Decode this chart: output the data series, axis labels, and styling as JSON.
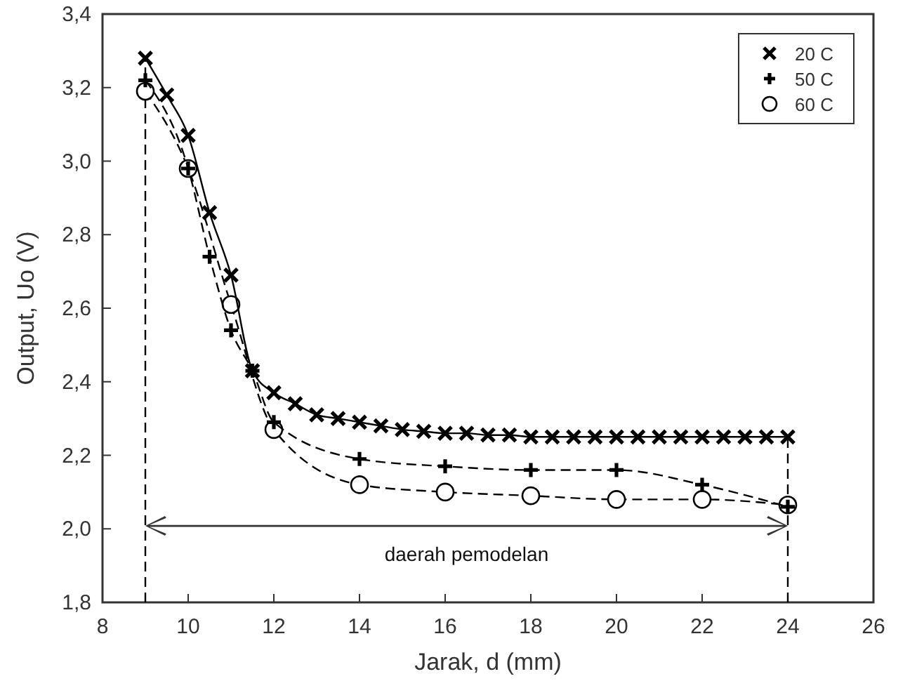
{
  "chart_data": {
    "type": "line",
    "xlabel": "Jarak, d (mm)",
    "ylabel": "Output, Uo (V)",
    "xlim": [
      8,
      26
    ],
    "xticks": [
      8,
      10,
      12,
      14,
      16,
      18,
      20,
      22,
      24,
      26
    ],
    "ylim": [
      1.8,
      3.4
    ],
    "yticks": [
      {
        "value": 1.8,
        "label": "1,8"
      },
      {
        "value": 2.0,
        "label": "2,0"
      },
      {
        "value": 2.2,
        "label": "2,2"
      },
      {
        "value": 2.4,
        "label": "2,4"
      },
      {
        "value": 2.6,
        "label": "2,6"
      },
      {
        "value": 2.8,
        "label": "2,8"
      },
      {
        "value": 3.0,
        "label": "3,0"
      },
      {
        "value": 3.2,
        "label": "3,2"
      },
      {
        "value": 3.4,
        "label": "3,4"
      }
    ],
    "legend": "top right",
    "series": [
      {
        "name": "20 C",
        "color": "#000000",
        "marker": "cross",
        "line_style": "solid",
        "x": [
          9,
          9.5,
          10,
          10.5,
          11,
          11.5,
          12,
          12.5,
          13,
          13.5,
          14,
          14.5,
          15,
          15.5,
          16,
          16.5,
          17,
          17.5,
          18,
          18.5,
          19,
          19.5,
          20,
          20.5,
          21,
          21.5,
          22,
          22.5,
          23,
          23.5,
          24
        ],
        "values": [
          3.28,
          3.18,
          3.07,
          2.86,
          2.69,
          2.43,
          2.37,
          2.34,
          2.31,
          2.3,
          2.29,
          2.28,
          2.27,
          2.265,
          2.26,
          2.26,
          2.255,
          2.255,
          2.25,
          2.25,
          2.25,
          2.25,
          2.25,
          2.25,
          2.25,
          2.25,
          2.25,
          2.25,
          2.25,
          2.25,
          2.25
        ]
      },
      {
        "name": "50 C",
        "color": "#000000",
        "marker": "plus",
        "line_style": "dashed",
        "x": [
          9,
          10,
          10.5,
          11,
          11.5,
          12,
          14,
          16,
          18,
          20,
          22,
          24
        ],
        "values": [
          3.22,
          2.98,
          2.74,
          2.54,
          2.43,
          2.29,
          2.19,
          2.17,
          2.16,
          2.16,
          2.12,
          2.06
        ]
      },
      {
        "name": "60 C",
        "color": "#000000",
        "marker": "circle",
        "line_style": "dashed",
        "x": [
          9,
          10,
          11,
          12,
          14,
          16,
          18,
          20,
          22,
          24
        ],
        "values": [
          3.19,
          2.98,
          2.61,
          2.27,
          2.12,
          2.1,
          2.09,
          2.08,
          2.08,
          2.065
        ]
      }
    ],
    "ref_lines": [
      {
        "axis": "x",
        "value": 9,
        "line_style": "dashed",
        "color": "#000000"
      },
      {
        "axis": "x",
        "value": 24,
        "line_style": "dashed",
        "color": "#000000"
      }
    ],
    "annotations": [
      "daerah pemodelan"
    ]
  }
}
